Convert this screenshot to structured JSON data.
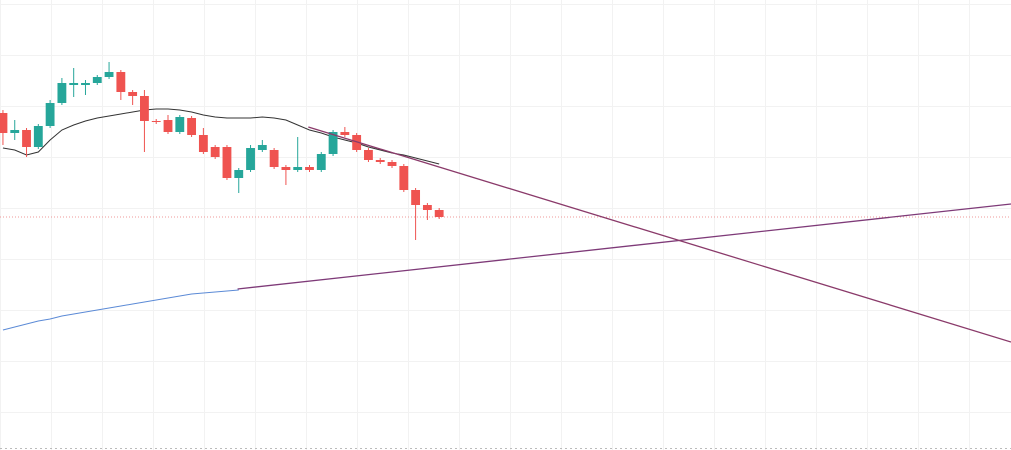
{
  "chart_data": {
    "type": "candlestick",
    "xlim": [
      -0.25,
      85.5
    ],
    "ylim": [
      0,
      450
    ],
    "up_color": "#26a69a",
    "down_color": "#ef5350",
    "open": [
      337,
      317,
      320,
      303,
      324,
      347,
      365,
      365,
      367,
      373,
      378,
      358,
      354,
      329,
      330,
      318,
      332,
      315,
      303,
      303,
      272,
      280,
      300,
      300,
      283,
      280,
      283,
      280,
      296,
      318,
      315,
      300,
      290,
      288,
      284,
      260,
      245,
      240
    ],
    "close": [
      317,
      320,
      303,
      324,
      347,
      367,
      367,
      367,
      373,
      378,
      358,
      354,
      329,
      328,
      318,
      333,
      315,
      298,
      293,
      272,
      280,
      302,
      305,
      283,
      280,
      283,
      280,
      296,
      318,
      315,
      300,
      290,
      288,
      284,
      260,
      245,
      240,
      233
    ],
    "high": [
      340,
      330,
      322,
      326,
      350,
      372,
      382,
      370,
      375,
      388,
      380,
      360,
      360,
      331,
      335,
      335,
      334,
      322,
      305,
      305,
      282,
      305,
      310,
      302,
      285,
      313,
      285,
      298,
      320,
      323,
      317,
      302,
      292,
      290,
      286,
      262,
      247,
      242
    ],
    "low": [
      305,
      310,
      293,
      301,
      322,
      345,
      353,
      355,
      365,
      371,
      350,
      345,
      298,
      326,
      316,
      316,
      313,
      296,
      291,
      270,
      257,
      278,
      298,
      281,
      265,
      278,
      278,
      278,
      294,
      313,
      298,
      288,
      286,
      282,
      258,
      210,
      230,
      231
    ],
    "series": [
      {
        "color": "#333333",
        "values": [
          302,
          300,
          295,
          298,
          310,
          320,
          325,
          329,
          332,
          334,
          336,
          338,
          340,
          341,
          341,
          340,
          338,
          335,
          333,
          332,
          332,
          332,
          333,
          332,
          330,
          325,
          320,
          317,
          313,
          310,
          307,
          303,
          300,
          297,
          295,
          292,
          289,
          286
        ]
      },
      {
        "color": "#5b8ad6",
        "values": [
          120,
          123,
          126,
          129,
          131,
          134,
          136,
          138,
          140,
          142,
          144,
          146,
          148,
          150,
          152,
          154,
          156,
          157,
          158,
          159,
          160
        ]
      }
    ],
    "trendlines": [
      {
        "color": "#7e3a78",
        "x": [
          19.9,
          85.5
        ],
        "y": [
          161,
          246
        ]
      },
      {
        "color": "#8a3a6a",
        "x": [
          25.9,
          85.5
        ],
        "y": [
          323,
          108
        ]
      }
    ],
    "last_price_line_color": "#ef9a9a"
  }
}
